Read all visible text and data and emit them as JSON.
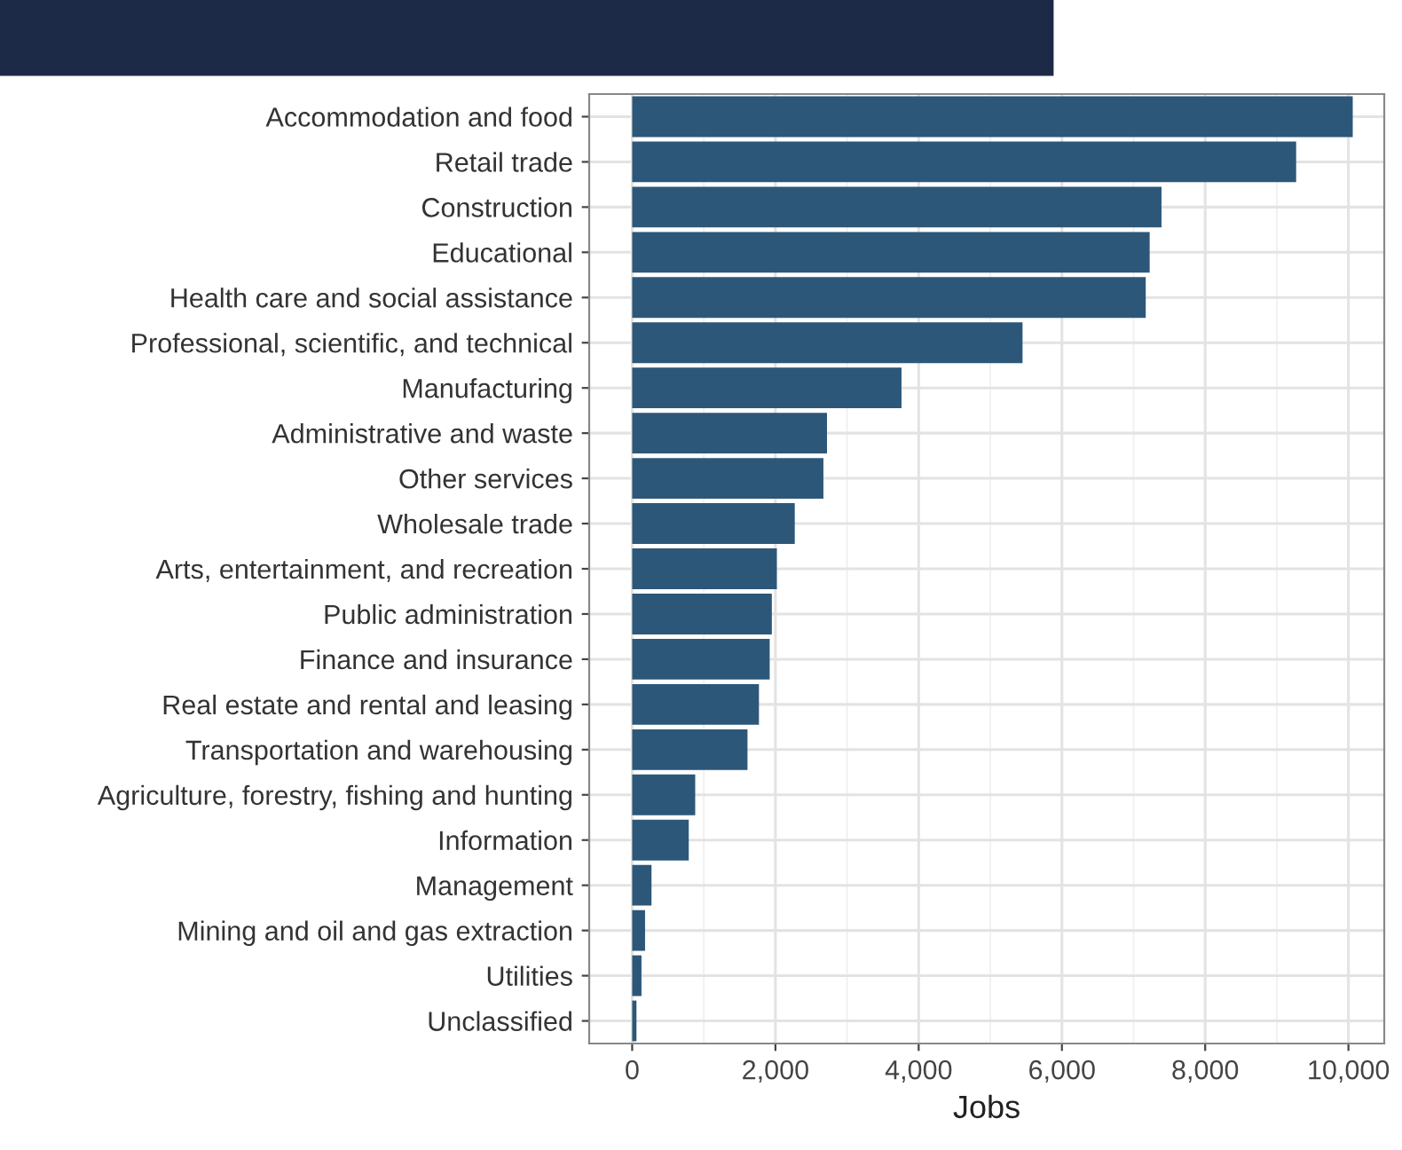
{
  "chart_data": {
    "type": "bar",
    "orientation": "horizontal",
    "xlabel": "Jobs",
    "categories": [
      "Accommodation and food",
      "Retail trade",
      "Construction",
      "Educational",
      "Health care and social assistance",
      "Professional, scientific, and technical",
      "Manufacturing",
      "Administrative and waste",
      "Other services",
      "Wholesale trade",
      "Arts, entertainment, and recreation",
      "Public administration",
      "Finance and insurance",
      "Real estate and rental and leasing",
      "Transportation and warehousing",
      "Agriculture, forestry, fishing and hunting",
      "Information",
      "Management",
      "Mining and oil and gas extraction",
      "Utilities",
      "Unclassified"
    ],
    "values": [
      10060,
      9270,
      7390,
      7225,
      7170,
      5450,
      3760,
      2720,
      2670,
      2270,
      2020,
      1950,
      1920,
      1770,
      1610,
      880,
      790,
      270,
      180,
      130,
      60
    ],
    "color": "#2c5779",
    "xlim": [
      -600,
      10500
    ],
    "xticks": [
      {
        "value": 0,
        "label": "0"
      },
      {
        "value": 2000,
        "label": "2,000"
      },
      {
        "value": 4000,
        "label": "4,000"
      },
      {
        "value": 6000,
        "label": "6,000"
      },
      {
        "value": 8000,
        "label": "8,000"
      },
      {
        "value": 10000,
        "label": "10,000"
      }
    ],
    "grid": true
  }
}
